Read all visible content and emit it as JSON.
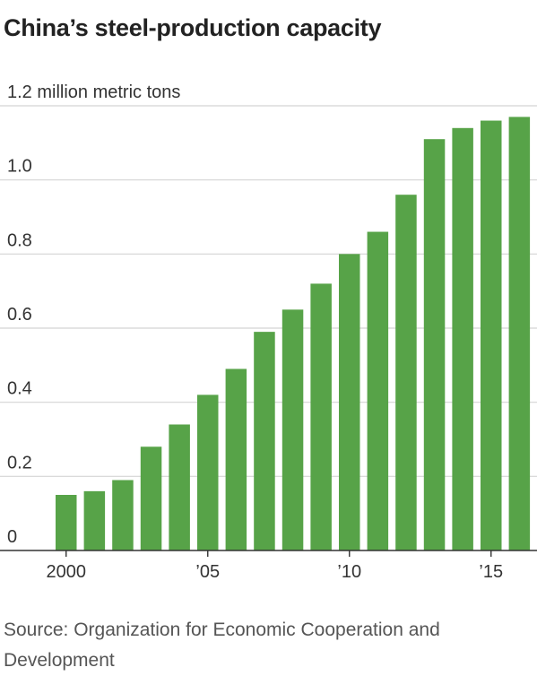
{
  "title": "China’s steel-production capacity",
  "source": "Source: Organization for Economic Cooperation and Development",
  "colors": {
    "bar": "#57a348",
    "grid": "#d4d4d4",
    "axis": "#333333"
  },
  "chart_data": {
    "type": "bar",
    "title": "China’s steel-production capacity",
    "ylabel": "million metric tons",
    "x": [
      2000,
      2001,
      2002,
      2003,
      2004,
      2005,
      2006,
      2007,
      2008,
      2009,
      2010,
      2011,
      2012,
      2013,
      2014,
      2015,
      2016
    ],
    "values": [
      0.15,
      0.16,
      0.19,
      0.28,
      0.34,
      0.42,
      0.49,
      0.59,
      0.65,
      0.72,
      0.8,
      0.86,
      0.96,
      1.11,
      1.14,
      1.16,
      1.17
    ],
    "ylim": [
      0,
      1.2
    ],
    "y_ticks": [
      {
        "value": 0,
        "label": "0"
      },
      {
        "value": 0.2,
        "label": "0.2"
      },
      {
        "value": 0.4,
        "label": "0.4"
      },
      {
        "value": 0.6,
        "label": "0.6"
      },
      {
        "value": 0.8,
        "label": "0.8"
      },
      {
        "value": 1.0,
        "label": "1.0"
      },
      {
        "value": 1.2,
        "label": "1.2 million metric tons"
      }
    ],
    "x_ticks": [
      {
        "value": 2000,
        "label": "2000"
      },
      {
        "value": 2005,
        "label": "’05"
      },
      {
        "value": 2010,
        "label": "’10"
      },
      {
        "value": 2015,
        "label": "’15"
      }
    ],
    "grid": true
  }
}
